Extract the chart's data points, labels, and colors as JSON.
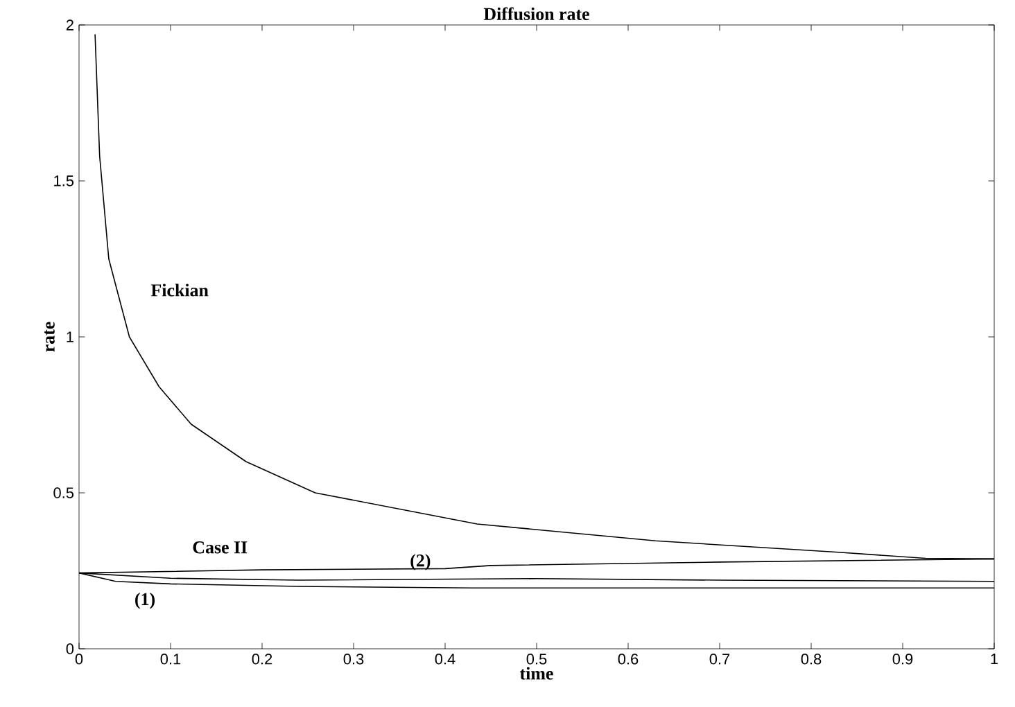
{
  "chart_data": {
    "type": "line",
    "title": "Diffusion rate",
    "xlabel": "time",
    "ylabel": "rate",
    "xlim": [
      0,
      1
    ],
    "ylim": [
      0,
      2
    ],
    "xticks": [
      0,
      0.1,
      0.2,
      0.3,
      0.4,
      0.5,
      0.6,
      0.7,
      0.8,
      0.9,
      1
    ],
    "yticks": [
      0,
      0.5,
      1,
      1.5,
      2
    ],
    "grid": false,
    "series": [
      {
        "color": "#000000",
        "x": [
          0.0175,
          0.0225,
          0.0325,
          0.055,
          0.0875,
          0.1225,
          0.1825,
          0.258,
          0.435,
          0.63,
          0.827,
          0.925,
          1.0
        ],
        "values": [
          1.97,
          1.58,
          1.25,
          1.0,
          0.84,
          0.72,
          0.6,
          0.5,
          0.4,
          0.346,
          0.31,
          0.29,
          0.288
        ]
      },
      {
        "color": "#000000",
        "x": [
          0.0,
          0.2,
          0.4,
          0.45,
          0.7,
          1.0
        ],
        "values": [
          0.243,
          0.253,
          0.257,
          0.267,
          0.278,
          0.288
        ]
      },
      {
        "color": "#000000",
        "x": [
          0.0,
          0.1,
          0.24,
          0.5,
          0.7,
          1.0
        ],
        "values": [
          0.243,
          0.226,
          0.22,
          0.225,
          0.22,
          0.216
        ]
      },
      {
        "color": "#000000",
        "x": [
          0.0,
          0.04,
          0.1,
          0.24,
          0.43,
          0.7,
          1.0
        ],
        "values": [
          0.243,
          0.216,
          0.208,
          0.2,
          0.195,
          0.195,
          0.195
        ]
      }
    ],
    "annotations": [
      "Fickian",
      "Case II",
      {
        "text": "(2)",
        "x": 0.373,
        "y": 0.278
      },
      "(1)"
    ]
  }
}
